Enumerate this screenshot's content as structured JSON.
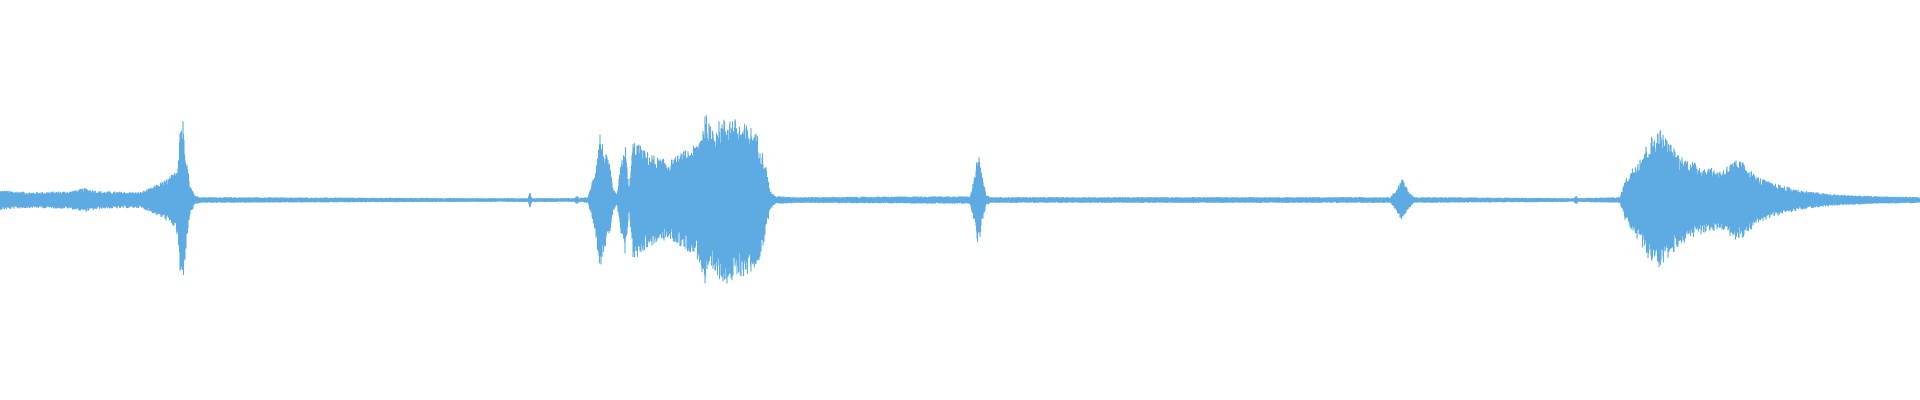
{
  "waveform": {
    "color": "#5dabe2",
    "background": "#ffffff"
  }
}
